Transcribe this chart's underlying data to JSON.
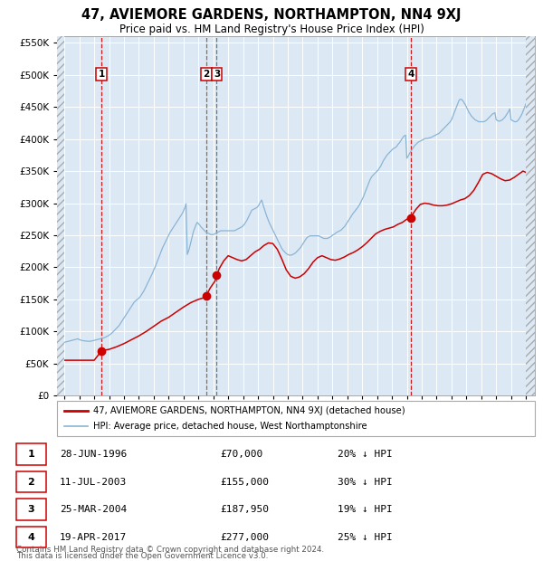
{
  "title": "47, AVIEMORE GARDENS, NORTHAMPTON, NN4 9XJ",
  "subtitle": "Price paid vs. HM Land Registry's House Price Index (HPI)",
  "legend_line1": "47, AVIEMORE GARDENS, NORTHAMPTON, NN4 9XJ (detached house)",
  "legend_line2": "HPI: Average price, detached house, West Northamptonshire",
  "footer1": "Contains HM Land Registry data © Crown copyright and database right 2024.",
  "footer2": "This data is licensed under the Open Government Licence v3.0.",
  "plot_bg_color": "#dce9f5",
  "hpi_color": "#8ab4d4",
  "price_color": "#cc0000",
  "vline_color_red": "#cc0000",
  "vline_color_gray": "#666666",
  "ylim": [
    0,
    560000
  ],
  "yticks": [
    0,
    50000,
    100000,
    150000,
    200000,
    250000,
    300000,
    350000,
    400000,
    450000,
    500000,
    550000
  ],
  "xlim_start": 1993.5,
  "xlim_end": 2025.6,
  "xticks": [
    1994,
    1995,
    1996,
    1997,
    1998,
    1999,
    2000,
    2001,
    2002,
    2003,
    2004,
    2005,
    2006,
    2007,
    2008,
    2009,
    2010,
    2011,
    2012,
    2013,
    2014,
    2015,
    2016,
    2017,
    2018,
    2019,
    2020,
    2021,
    2022,
    2023,
    2024,
    2025
  ],
  "transactions": [
    {
      "num": 1,
      "date": "28-JUN-1996",
      "price": 70000,
      "year": 1996.49,
      "pct": "20%",
      "vline": "red"
    },
    {
      "num": 2,
      "date": "11-JUL-2003",
      "price": 155000,
      "year": 2003.53,
      "pct": "30%",
      "vline": "gray"
    },
    {
      "num": 3,
      "date": "25-MAR-2004",
      "price": 187950,
      "year": 2004.23,
      "pct": "19%",
      "vline": "gray"
    },
    {
      "num": 4,
      "date": "19-APR-2017",
      "price": 277000,
      "year": 2017.3,
      "pct": "25%",
      "vline": "red"
    }
  ],
  "hpi_years": [
    1994.0,
    1994.083,
    1994.167,
    1994.25,
    1994.333,
    1994.417,
    1994.5,
    1994.583,
    1994.667,
    1994.75,
    1994.833,
    1994.917,
    1995.0,
    1995.083,
    1995.167,
    1995.25,
    1995.333,
    1995.417,
    1995.5,
    1995.583,
    1995.667,
    1995.75,
    1995.833,
    1995.917,
    1996.0,
    1996.083,
    1996.167,
    1996.25,
    1996.333,
    1996.417,
    1996.5,
    1996.583,
    1996.667,
    1996.75,
    1996.833,
    1996.917,
    1997.0,
    1997.083,
    1997.167,
    1997.25,
    1997.333,
    1997.417,
    1997.5,
    1997.583,
    1997.667,
    1997.75,
    1997.833,
    1997.917,
    1998.0,
    1998.083,
    1998.167,
    1998.25,
    1998.333,
    1998.417,
    1998.5,
    1998.583,
    1998.667,
    1998.75,
    1998.833,
    1998.917,
    1999.0,
    1999.083,
    1999.167,
    1999.25,
    1999.333,
    1999.417,
    1999.5,
    1999.583,
    1999.667,
    1999.75,
    1999.833,
    1999.917,
    2000.0,
    2000.083,
    2000.167,
    2000.25,
    2000.333,
    2000.417,
    2000.5,
    2000.583,
    2000.667,
    2000.75,
    2000.833,
    2000.917,
    2001.0,
    2001.083,
    2001.167,
    2001.25,
    2001.333,
    2001.417,
    2001.5,
    2001.583,
    2001.667,
    2001.75,
    2001.833,
    2001.917,
    2002.0,
    2002.083,
    2002.167,
    2002.25,
    2002.333,
    2002.417,
    2002.5,
    2002.583,
    2002.667,
    2002.75,
    2002.833,
    2002.917,
    2003.0,
    2003.083,
    2003.167,
    2003.25,
    2003.333,
    2003.417,
    2003.5,
    2003.583,
    2003.667,
    2003.75,
    2003.833,
    2003.917,
    2004.0,
    2004.083,
    2004.167,
    2004.25,
    2004.333,
    2004.417,
    2004.5,
    2004.583,
    2004.667,
    2004.75,
    2004.833,
    2004.917,
    2005.0,
    2005.083,
    2005.167,
    2005.25,
    2005.333,
    2005.417,
    2005.5,
    2005.583,
    2005.667,
    2005.75,
    2005.833,
    2005.917,
    2006.0,
    2006.083,
    2006.167,
    2006.25,
    2006.333,
    2006.417,
    2006.5,
    2006.583,
    2006.667,
    2006.75,
    2006.833,
    2006.917,
    2007.0,
    2007.083,
    2007.167,
    2007.25,
    2007.333,
    2007.417,
    2007.5,
    2007.583,
    2007.667,
    2007.75,
    2007.833,
    2007.917,
    2008.0,
    2008.083,
    2008.167,
    2008.25,
    2008.333,
    2008.417,
    2008.5,
    2008.583,
    2008.667,
    2008.75,
    2008.833,
    2008.917,
    2009.0,
    2009.083,
    2009.167,
    2009.25,
    2009.333,
    2009.417,
    2009.5,
    2009.583,
    2009.667,
    2009.75,
    2009.833,
    2009.917,
    2010.0,
    2010.083,
    2010.167,
    2010.25,
    2010.333,
    2010.417,
    2010.5,
    2010.583,
    2010.667,
    2010.75,
    2010.833,
    2010.917,
    2011.0,
    2011.083,
    2011.167,
    2011.25,
    2011.333,
    2011.417,
    2011.5,
    2011.583,
    2011.667,
    2011.75,
    2011.833,
    2011.917,
    2012.0,
    2012.083,
    2012.167,
    2012.25,
    2012.333,
    2012.417,
    2012.5,
    2012.583,
    2012.667,
    2012.75,
    2012.833,
    2012.917,
    2013.0,
    2013.083,
    2013.167,
    2013.25,
    2013.333,
    2013.417,
    2013.5,
    2013.583,
    2013.667,
    2013.75,
    2013.833,
    2013.917,
    2014.0,
    2014.083,
    2014.167,
    2014.25,
    2014.333,
    2014.417,
    2014.5,
    2014.583,
    2014.667,
    2014.75,
    2014.833,
    2014.917,
    2015.0,
    2015.083,
    2015.167,
    2015.25,
    2015.333,
    2015.417,
    2015.5,
    2015.583,
    2015.667,
    2015.75,
    2015.833,
    2015.917,
    2016.0,
    2016.083,
    2016.167,
    2016.25,
    2016.333,
    2016.417,
    2016.5,
    2016.583,
    2016.667,
    2016.75,
    2016.833,
    2016.917,
    2017.0,
    2017.083,
    2017.167,
    2017.25,
    2017.333,
    2017.417,
    2017.5,
    2017.583,
    2017.667,
    2017.75,
    2017.833,
    2017.917,
    2018.0,
    2018.083,
    2018.167,
    2018.25,
    2018.333,
    2018.417,
    2018.5,
    2018.583,
    2018.667,
    2018.75,
    2018.833,
    2018.917,
    2019.0,
    2019.083,
    2019.167,
    2019.25,
    2019.333,
    2019.417,
    2019.5,
    2019.583,
    2019.667,
    2019.75,
    2019.833,
    2019.917,
    2020.0,
    2020.083,
    2020.167,
    2020.25,
    2020.333,
    2020.417,
    2020.5,
    2020.583,
    2020.667,
    2020.75,
    2020.833,
    2020.917,
    2021.0,
    2021.083,
    2021.167,
    2021.25,
    2021.333,
    2021.417,
    2021.5,
    2021.583,
    2021.667,
    2021.75,
    2021.833,
    2021.917,
    2022.0,
    2022.083,
    2022.167,
    2022.25,
    2022.333,
    2022.417,
    2022.5,
    2022.583,
    2022.667,
    2022.75,
    2022.833,
    2022.917,
    2023.0,
    2023.083,
    2023.167,
    2023.25,
    2023.333,
    2023.417,
    2023.5,
    2023.583,
    2023.667,
    2023.75,
    2023.833,
    2023.917,
    2024.0,
    2024.083,
    2024.167,
    2024.25,
    2024.333,
    2024.417,
    2024.5,
    2024.583,
    2024.667,
    2024.75,
    2024.833,
    2024.917,
    2025.0
  ],
  "hpi_values": [
    83000,
    83500,
    84000,
    84500,
    85000,
    85500,
    86000,
    86500,
    87000,
    87500,
    88000,
    88500,
    87000,
    86500,
    86000,
    85500,
    85200,
    85000,
    84800,
    84500,
    84500,
    84700,
    85000,
    85500,
    86000,
    86500,
    87000,
    87500,
    88000,
    88500,
    89000,
    89500,
    90000,
    91000,
    92000,
    93000,
    94000,
    95500,
    97000,
    99000,
    101000,
    103000,
    105000,
    107000,
    109000,
    112000,
    115000,
    118000,
    121000,
    124000,
    127000,
    130000,
    133000,
    136000,
    139000,
    142000,
    145000,
    147000,
    149000,
    150000,
    152000,
    154000,
    157000,
    160000,
    163000,
    167000,
    171000,
    175000,
    179000,
    183000,
    187000,
    191000,
    196000,
    200000,
    205000,
    210000,
    215000,
    220000,
    225000,
    230000,
    234000,
    238000,
    242000,
    246000,
    250000,
    254000,
    257000,
    260000,
    263000,
    266000,
    269000,
    272000,
    275000,
    278000,
    281000,
    284000,
    288000,
    293000,
    299000,
    220000,
    225000,
    232000,
    240000,
    248000,
    256000,
    261000,
    266000,
    270000,
    268000,
    266000,
    263000,
    261000,
    259000,
    257000,
    255000,
    254000,
    253000,
    252000,
    251000,
    251000,
    251000,
    252000,
    253000,
    254000,
    255000,
    256000,
    257000,
    257000,
    257000,
    257000,
    257000,
    257000,
    257000,
    257000,
    257000,
    257000,
    257000,
    257000,
    258000,
    259000,
    260000,
    261000,
    262000,
    263000,
    265000,
    267000,
    270000,
    273000,
    277000,
    281000,
    285000,
    289000,
    290000,
    291000,
    292000,
    293000,
    295000,
    298000,
    302000,
    305000,
    298000,
    292000,
    286000,
    280000,
    275000,
    270000,
    266000,
    262000,
    258000,
    254000,
    250000,
    246000,
    242000,
    238000,
    234000,
    230000,
    227000,
    225000,
    223000,
    221000,
    220000,
    219000,
    219000,
    219000,
    220000,
    221000,
    222000,
    224000,
    226000,
    228000,
    230000,
    233000,
    236000,
    239000,
    242000,
    245000,
    247000,
    248000,
    249000,
    249000,
    249000,
    249000,
    249000,
    249000,
    249000,
    249000,
    248000,
    247000,
    246000,
    245000,
    245000,
    245000,
    245000,
    246000,
    247000,
    248000,
    250000,
    251000,
    252000,
    254000,
    255000,
    256000,
    257000,
    258000,
    260000,
    262000,
    264000,
    267000,
    270000,
    273000,
    276000,
    279000,
    282000,
    285000,
    287000,
    290000,
    292000,
    295000,
    298000,
    302000,
    306000,
    310000,
    315000,
    320000,
    325000,
    330000,
    335000,
    339000,
    342000,
    344000,
    346000,
    348000,
    350000,
    352000,
    355000,
    358000,
    362000,
    366000,
    369000,
    372000,
    375000,
    377000,
    379000,
    381000,
    383000,
    385000,
    386000,
    387000,
    389000,
    392000,
    394000,
    397000,
    400000,
    403000,
    405000,
    406000,
    370000,
    373000,
    377000,
    380000,
    383000,
    386000,
    389000,
    391000,
    393000,
    395000,
    396000,
    397000,
    398000,
    399000,
    400000,
    401000,
    401000,
    401000,
    402000,
    402000,
    403000,
    404000,
    405000,
    406000,
    407000,
    408000,
    409000,
    411000,
    413000,
    415000,
    417000,
    419000,
    421000,
    423000,
    425000,
    427000,
    430000,
    435000,
    440000,
    445000,
    450000,
    455000,
    460000,
    462000,
    462000,
    460000,
    457000,
    454000,
    450000,
    446000,
    442000,
    439000,
    436000,
    434000,
    432000,
    430000,
    429000,
    428000,
    427000,
    427000,
    427000,
    427000,
    427000,
    428000,
    429000,
    431000,
    433000,
    435000,
    437000,
    439000,
    440000,
    441000,
    430000,
    429000,
    428000,
    428000,
    429000,
    430000,
    432000,
    434000,
    437000,
    440000,
    443000,
    447000,
    430000,
    429000,
    428000,
    427000,
    427000,
    428000,
    430000,
    433000,
    436000,
    440000,
    445000,
    450000,
    455000
  ],
  "price_years": [
    1994.0,
    1996.0,
    1996.1,
    1996.2,
    1996.3,
    1996.4,
    1996.49,
    1997.0,
    1997.5,
    1998.0,
    1998.5,
    1999.0,
    1999.5,
    2000.0,
    2000.5,
    2001.0,
    2001.5,
    2002.0,
    2002.5,
    2003.0,
    2003.3,
    2003.53,
    2003.55,
    2003.8,
    2004.1,
    2004.23,
    2004.4,
    2004.7,
    2005.0,
    2005.3,
    2005.6,
    2005.9,
    2006.2,
    2006.5,
    2006.8,
    2007.1,
    2007.4,
    2007.7,
    2008.0,
    2008.3,
    2008.6,
    2008.9,
    2009.2,
    2009.5,
    2009.8,
    2010.1,
    2010.4,
    2010.7,
    2011.0,
    2011.3,
    2011.6,
    2011.9,
    2012.2,
    2012.5,
    2012.8,
    2013.1,
    2013.4,
    2013.7,
    2014.0,
    2014.3,
    2014.6,
    2014.9,
    2015.2,
    2015.5,
    2015.8,
    2016.1,
    2016.4,
    2016.7,
    2017.0,
    2017.3,
    2017.32,
    2017.6,
    2017.9,
    2018.2,
    2018.5,
    2018.8,
    2019.1,
    2019.4,
    2019.7,
    2020.0,
    2020.3,
    2020.6,
    2020.9,
    2021.2,
    2021.5,
    2021.8,
    2022.1,
    2022.4,
    2022.7,
    2023.0,
    2023.3,
    2023.6,
    2023.9,
    2024.2,
    2024.5,
    2024.8,
    2025.0
  ],
  "price_values": [
    55000,
    55000,
    58000,
    61000,
    64000,
    67000,
    70000,
    72000,
    76000,
    81000,
    87000,
    93000,
    100000,
    108000,
    116000,
    122000,
    130000,
    138000,
    145000,
    150000,
    152000,
    155000,
    157000,
    168000,
    178000,
    187950,
    198000,
    210000,
    218000,
    215000,
    212000,
    210000,
    212000,
    218000,
    224000,
    228000,
    234000,
    238000,
    237000,
    228000,
    213000,
    196000,
    186000,
    183000,
    185000,
    190000,
    198000,
    208000,
    215000,
    218000,
    215000,
    212000,
    211000,
    213000,
    216000,
    220000,
    223000,
    227000,
    232000,
    238000,
    245000,
    252000,
    256000,
    259000,
    261000,
    263000,
    267000,
    270000,
    275000,
    277000,
    280000,
    290000,
    298000,
    300000,
    299000,
    297000,
    296000,
    296000,
    297000,
    299000,
    302000,
    305000,
    307000,
    312000,
    320000,
    332000,
    345000,
    348000,
    346000,
    342000,
    338000,
    335000,
    336000,
    340000,
    345000,
    350000,
    348000
  ]
}
